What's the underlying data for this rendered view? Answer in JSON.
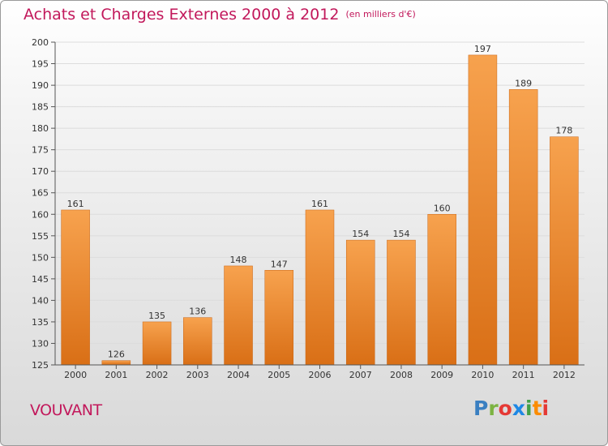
{
  "title": "Achats et Charges Externes 2000 à 2012",
  "unit_note": "(en milliers d'€)",
  "commune": "VOUVANT",
  "logo": "Proxiti",
  "colors": {
    "bar": "#e98a2f",
    "title": "#c2185b",
    "grid": "#dcdcdc"
  },
  "chart_data": {
    "type": "bar",
    "title": "Achats et Charges Externes 2000 à 2012",
    "xlabel": "",
    "ylabel": "",
    "categories": [
      "2000",
      "2001",
      "2002",
      "2003",
      "2004",
      "2005",
      "2006",
      "2007",
      "2008",
      "2009",
      "2010",
      "2011",
      "2012"
    ],
    "values": [
      161,
      126,
      135,
      136,
      148,
      147,
      161,
      154,
      154,
      160,
      197,
      189,
      178
    ],
    "ylim": [
      125,
      200
    ],
    "yticks": [
      125,
      130,
      135,
      140,
      145,
      150,
      155,
      160,
      165,
      170,
      175,
      180,
      185,
      190,
      195,
      200
    ],
    "grid": true,
    "data_labels": true
  }
}
